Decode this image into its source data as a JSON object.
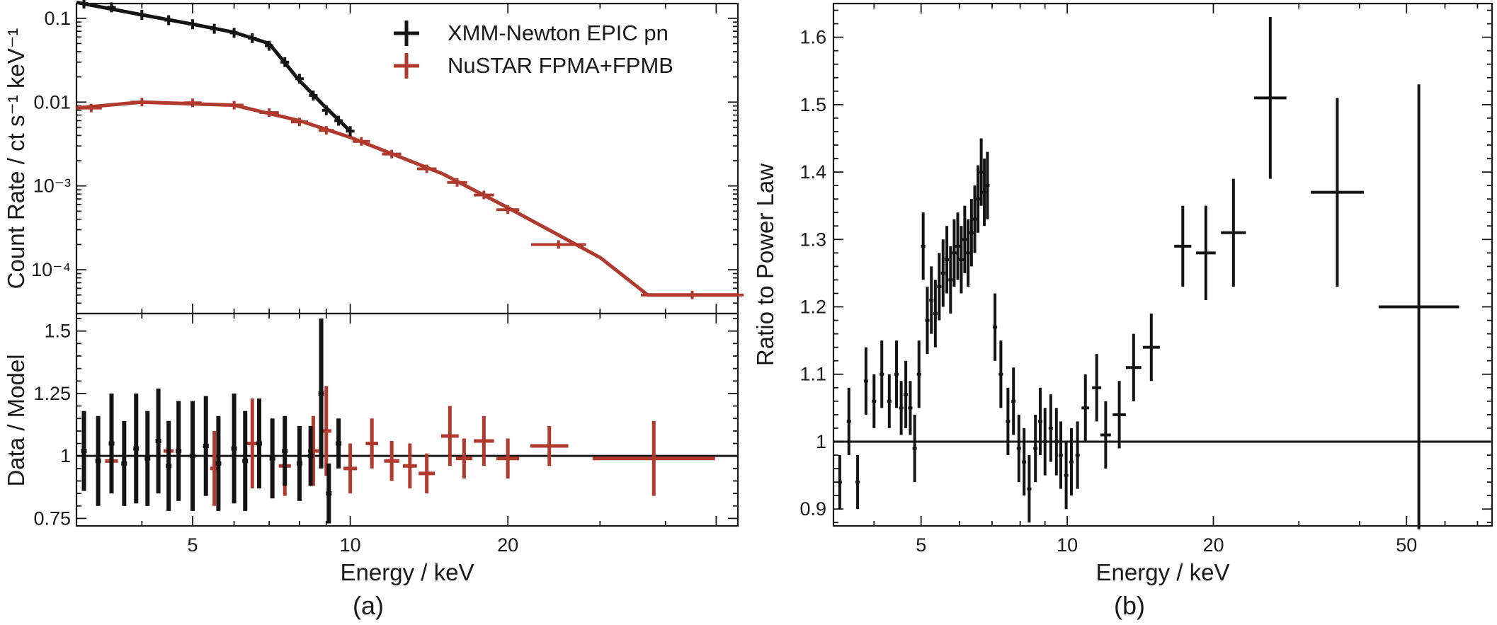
{
  "colors": {
    "xmm": "#141414",
    "nustar": "#b03a2e",
    "axis": "#1a1a1a"
  },
  "chart_data": [
    {
      "type": "scatter",
      "panel": "a-top",
      "xscale": "log",
      "yscale": "log",
      "xlim": [
        3,
        55
      ],
      "ylim": [
        3e-05,
        0.15
      ],
      "ylabel": "Count Rate / ct s⁻¹ keV⁻¹",
      "ytick_labels": [
        {
          "value": 0.1,
          "label": "0.1"
        },
        {
          "value": 0.01,
          "label": "0.01"
        },
        {
          "value": 0.001,
          "label": "10⁻³"
        },
        {
          "value": 0.0001,
          "label": "10⁻⁴"
        }
      ],
      "legend": {
        "position": "top-right",
        "entries": [
          "XMM-Newton EPIC pn",
          "NuSTAR FPMA+FPMB"
        ]
      },
      "series": [
        {
          "name": "XMM-Newton EPIC pn",
          "model": [
            [
              3.0,
              0.155
            ],
            [
              4.0,
              0.11
            ],
            [
              5.0,
              0.085
            ],
            [
              6.0,
              0.068
            ],
            [
              7.0,
              0.05
            ],
            [
              8.0,
              0.018
            ],
            [
              9.0,
              0.0085
            ],
            [
              10.0,
              0.0045
            ]
          ],
          "points": [
            [
              3.1,
              0.15
            ],
            [
              3.5,
              0.135
            ],
            [
              4.0,
              0.11
            ],
            [
              4.5,
              0.095
            ],
            [
              5.0,
              0.085
            ],
            [
              5.5,
              0.075
            ],
            [
              6.0,
              0.067
            ],
            [
              6.5,
              0.058
            ],
            [
              7.0,
              0.047
            ],
            [
              7.5,
              0.03
            ],
            [
              8.0,
              0.019
            ],
            [
              8.5,
              0.012
            ],
            [
              9.0,
              0.008
            ],
            [
              9.5,
              0.006
            ],
            [
              10.0,
              0.0045
            ]
          ]
        },
        {
          "name": "NuSTAR FPMA+FPMB",
          "model": [
            [
              3.0,
              0.0085
            ],
            [
              4.0,
              0.01
            ],
            [
              6.0,
              0.0092
            ],
            [
              8.0,
              0.006
            ],
            [
              10.0,
              0.0038
            ],
            [
              15.0,
              0.0014
            ],
            [
              20.0,
              0.00055
            ],
            [
              30.0,
              0.00014
            ],
            [
              37.0,
              5e-05
            ],
            [
              55.0,
              5e-05
            ]
          ],
          "points": [
            {
              "x": 3.2,
              "y": 0.0085,
              "xerr": 0.15
            },
            {
              "x": 4.0,
              "y": 0.01,
              "xerr": 0.2
            },
            {
              "x": 5.0,
              "y": 0.0098,
              "xerr": 0.2
            },
            {
              "x": 6.0,
              "y": 0.0092,
              "xerr": 0.25
            },
            {
              "x": 7.0,
              "y": 0.0075,
              "xerr": 0.3
            },
            {
              "x": 8.0,
              "y": 0.0058,
              "xerr": 0.3
            },
            {
              "x": 9.0,
              "y": 0.0046,
              "xerr": 0.3
            },
            {
              "x": 10.5,
              "y": 0.0034,
              "xerr": 0.4
            },
            {
              "x": 12.0,
              "y": 0.0024,
              "xerr": 0.5
            },
            {
              "x": 14.0,
              "y": 0.0016,
              "xerr": 0.6
            },
            {
              "x": 16.0,
              "y": 0.0011,
              "xerr": 0.7
            },
            {
              "x": 18.0,
              "y": 0.00078,
              "xerr": 0.8
            },
            {
              "x": 20.0,
              "y": 0.00052,
              "xerr": 1.0
            },
            {
              "x": 25.0,
              "y": 0.0002,
              "xerr": 3.0
            },
            {
              "x": 45.0,
              "y": 5e-05,
              "xerr": 10.0
            }
          ]
        }
      ]
    },
    {
      "type": "scatter",
      "panel": "a-bottom",
      "xscale": "log",
      "xlim": [
        3,
        55
      ],
      "ylim": [
        0.72,
        1.57
      ],
      "xlabel": "Energy / keV",
      "ylabel": "Data / Model",
      "xtick_labels": [
        {
          "value": 5,
          "label": "5"
        },
        {
          "value": 10,
          "label": "10"
        },
        {
          "value": 20,
          "label": "20"
        }
      ],
      "ytick_labels": [
        {
          "value": 0.75,
          "label": "0.75"
        },
        {
          "value": 1,
          "label": "1"
        },
        {
          "value": 1.25,
          "label": "1.25"
        },
        {
          "value": 1.5,
          "label": "1.5"
        }
      ],
      "reference_line": 1,
      "series": [
        {
          "name": "XMM-Newton EPIC pn",
          "points": [
            {
              "x": 3.1,
              "y": 1.02,
              "err": 0.16
            },
            {
              "x": 3.3,
              "y": 0.98,
              "err": 0.18
            },
            {
              "x": 3.5,
              "y": 1.05,
              "err": 0.2
            },
            {
              "x": 3.7,
              "y": 0.97,
              "err": 0.17
            },
            {
              "x": 3.9,
              "y": 1.03,
              "err": 0.22
            },
            {
              "x": 4.1,
              "y": 0.99,
              "err": 0.19
            },
            {
              "x": 4.3,
              "y": 1.06,
              "err": 0.21
            },
            {
              "x": 4.5,
              "y": 0.96,
              "err": 0.18
            },
            {
              "x": 4.7,
              "y": 1.02,
              "err": 0.2
            },
            {
              "x": 5.0,
              "y": 1.0,
              "err": 0.22
            },
            {
              "x": 5.3,
              "y": 1.04,
              "err": 0.2
            },
            {
              "x": 5.6,
              "y": 0.97,
              "err": 0.19
            },
            {
              "x": 6.0,
              "y": 1.03,
              "err": 0.22
            },
            {
              "x": 6.3,
              "y": 0.98,
              "err": 0.2
            },
            {
              "x": 6.7,
              "y": 1.05,
              "err": 0.18
            },
            {
              "x": 7.1,
              "y": 0.99,
              "err": 0.16
            },
            {
              "x": 7.5,
              "y": 1.02,
              "err": 0.14
            },
            {
              "x": 8.0,
              "y": 0.97,
              "err": 0.15
            },
            {
              "x": 8.4,
              "y": 1.0,
              "err": 0.12
            },
            {
              "x": 8.8,
              "y": 1.25,
              "err": 0.3
            },
            {
              "x": 9.1,
              "y": 0.85,
              "err": 0.12
            },
            {
              "x": 9.5,
              "y": 1.05,
              "err": 0.1
            }
          ]
        },
        {
          "name": "NuSTAR FPMA+FPMB",
          "points": [
            {
              "x": 3.5,
              "y": 0.98,
              "err": 0.1,
              "xerr": 0.1
            },
            {
              "x": 4.5,
              "y": 1.02,
              "err": 0.12,
              "xerr": 0.1
            },
            {
              "x": 5.5,
              "y": 0.95,
              "err": 0.15,
              "xerr": 0.1
            },
            {
              "x": 6.5,
              "y": 1.05,
              "err": 0.18,
              "xerr": 0.15
            },
            {
              "x": 7.5,
              "y": 0.96,
              "err": 0.12,
              "xerr": 0.2
            },
            {
              "x": 8.5,
              "y": 1.02,
              "err": 0.14,
              "xerr": 0.2
            },
            {
              "x": 9.0,
              "y": 1.1,
              "err": 0.18,
              "xerr": 0.2
            },
            {
              "x": 10.0,
              "y": 0.95,
              "err": 0.1,
              "xerr": 0.3
            },
            {
              "x": 11.0,
              "y": 1.05,
              "err": 0.1,
              "xerr": 0.3
            },
            {
              "x": 12.0,
              "y": 0.98,
              "err": 0.08,
              "xerr": 0.4
            },
            {
              "x": 13.0,
              "y": 0.96,
              "err": 0.09,
              "xerr": 0.4
            },
            {
              "x": 14.0,
              "y": 0.93,
              "err": 0.08,
              "xerr": 0.5
            },
            {
              "x": 15.5,
              "y": 1.08,
              "err": 0.12,
              "xerr": 0.6
            },
            {
              "x": 16.5,
              "y": 0.99,
              "err": 0.08,
              "xerr": 0.6
            },
            {
              "x": 18.0,
              "y": 1.06,
              "err": 0.1,
              "xerr": 0.8
            },
            {
              "x": 20.0,
              "y": 0.99,
              "err": 0.08,
              "xerr": 1.0
            },
            {
              "x": 24.0,
              "y": 1.04,
              "err": 0.08,
              "xerr": 2.0
            },
            {
              "x": 38.0,
              "y": 0.99,
              "err": 0.15,
              "xerr": 10.0
            }
          ]
        }
      ]
    },
    {
      "type": "scatter",
      "panel": "b",
      "xscale": "log",
      "xlim": [
        3.3,
        75
      ],
      "ylim": [
        0.875,
        1.65
      ],
      "xlabel": "Energy / keV",
      "ylabel": "Ratio to Power Law",
      "xtick_labels": [
        {
          "value": 5,
          "label": "5"
        },
        {
          "value": 10,
          "label": "10"
        },
        {
          "value": 20,
          "label": "20"
        },
        {
          "value": 50,
          "label": "50"
        }
      ],
      "ytick_labels": [
        {
          "value": 0.9,
          "label": "0.9"
        },
        {
          "value": 1.0,
          "label": "1"
        },
        {
          "value": 1.1,
          "label": "1.1"
        },
        {
          "value": 1.2,
          "label": "1.2"
        },
        {
          "value": 1.3,
          "label": "1.3"
        },
        {
          "value": 1.4,
          "label": "1.4"
        },
        {
          "value": 1.5,
          "label": "1.5"
        },
        {
          "value": 1.6,
          "label": "1.6"
        }
      ],
      "reference_line": 1,
      "series": [
        {
          "name": "ratio",
          "points": [
            {
              "x": 3.4,
              "y": 0.94,
              "err": 0.04
            },
            {
              "x": 3.55,
              "y": 1.03,
              "err": 0.05
            },
            {
              "x": 3.7,
              "y": 0.94,
              "err": 0.04
            },
            {
              "x": 3.85,
              "y": 1.09,
              "err": 0.05
            },
            {
              "x": 4.0,
              "y": 1.06,
              "err": 0.04
            },
            {
              "x": 4.15,
              "y": 1.1,
              "err": 0.05
            },
            {
              "x": 4.3,
              "y": 1.06,
              "err": 0.04
            },
            {
              "x": 4.45,
              "y": 1.1,
              "err": 0.05
            },
            {
              "x": 4.55,
              "y": 1.05,
              "err": 0.04
            },
            {
              "x": 4.65,
              "y": 1.07,
              "err": 0.05
            },
            {
              "x": 4.75,
              "y": 1.05,
              "err": 0.04
            },
            {
              "x": 4.85,
              "y": 0.99,
              "err": 0.05
            },
            {
              "x": 4.95,
              "y": 1.1,
              "err": 0.05
            },
            {
              "x": 5.05,
              "y": 1.29,
              "err": 0.05
            },
            {
              "x": 5.15,
              "y": 1.18,
              "err": 0.05
            },
            {
              "x": 5.25,
              "y": 1.21,
              "err": 0.05
            },
            {
              "x": 5.35,
              "y": 1.19,
              "err": 0.05
            },
            {
              "x": 5.45,
              "y": 1.23,
              "err": 0.05
            },
            {
              "x": 5.55,
              "y": 1.25,
              "err": 0.05
            },
            {
              "x": 5.65,
              "y": 1.27,
              "err": 0.05
            },
            {
              "x": 5.75,
              "y": 1.24,
              "err": 0.05
            },
            {
              "x": 5.85,
              "y": 1.28,
              "err": 0.05
            },
            {
              "x": 5.95,
              "y": 1.29,
              "err": 0.05
            },
            {
              "x": 6.05,
              "y": 1.27,
              "err": 0.05
            },
            {
              "x": 6.15,
              "y": 1.3,
              "err": 0.05
            },
            {
              "x": 6.25,
              "y": 1.28,
              "err": 0.05
            },
            {
              "x": 6.35,
              "y": 1.31,
              "err": 0.05
            },
            {
              "x": 6.45,
              "y": 1.33,
              "err": 0.05
            },
            {
              "x": 6.55,
              "y": 1.36,
              "err": 0.05
            },
            {
              "x": 6.65,
              "y": 1.4,
              "err": 0.05
            },
            {
              "x": 6.75,
              "y": 1.37,
              "err": 0.05
            },
            {
              "x": 6.85,
              "y": 1.38,
              "err": 0.05
            },
            {
              "x": 7.1,
              "y": 1.17,
              "err": 0.05
            },
            {
              "x": 7.3,
              "y": 1.1,
              "err": 0.05
            },
            {
              "x": 7.55,
              "y": 1.03,
              "err": 0.05
            },
            {
              "x": 7.75,
              "y": 1.06,
              "err": 0.05
            },
            {
              "x": 7.95,
              "y": 0.99,
              "err": 0.05
            },
            {
              "x": 8.15,
              "y": 0.97,
              "err": 0.05
            },
            {
              "x": 8.35,
              "y": 0.93,
              "err": 0.05
            },
            {
              "x": 8.6,
              "y": 0.99,
              "err": 0.05
            },
            {
              "x": 8.8,
              "y": 1.03,
              "err": 0.05
            },
            {
              "x": 9.0,
              "y": 1.0,
              "err": 0.05
            },
            {
              "x": 9.25,
              "y": 1.02,
              "err": 0.05
            },
            {
              "x": 9.5,
              "y": 1.0,
              "err": 0.05
            },
            {
              "x": 9.7,
              "y": 0.98,
              "err": 0.05
            },
            {
              "x": 9.95,
              "y": 0.95,
              "err": 0.05
            },
            {
              "x": 10.2,
              "y": 0.97,
              "err": 0.05
            },
            {
              "x": 10.5,
              "y": 0.98,
              "err": 0.05
            },
            {
              "x": 10.9,
              "y": 1.05,
              "err": 0.05,
              "xerr": 0.2
            },
            {
              "x": 11.5,
              "y": 1.08,
              "err": 0.05,
              "xerr": 0.25
            },
            {
              "x": 12.0,
              "y": 1.01,
              "err": 0.05,
              "xerr": 0.3
            },
            {
              "x": 12.8,
              "y": 1.04,
              "err": 0.05,
              "xerr": 0.4
            },
            {
              "x": 13.7,
              "y": 1.11,
              "err": 0.05,
              "xerr": 0.5
            },
            {
              "x": 14.9,
              "y": 1.14,
              "err": 0.05,
              "xerr": 0.6
            },
            {
              "x": 17.3,
              "y": 1.29,
              "err": 0.06,
              "xerr": 0.7
            },
            {
              "x": 19.3,
              "y": 1.28,
              "err": 0.07,
              "xerr": 0.9
            },
            {
              "x": 22.0,
              "y": 1.31,
              "err": 0.08,
              "xerr": 1.3
            },
            {
              "x": 26.2,
              "y": 1.51,
              "err": 0.12,
              "xerr": 2.0
            },
            {
              "x": 36.0,
              "y": 1.37,
              "err": 0.14,
              "xerr": 4.5
            },
            {
              "x": 53.0,
              "y": 1.2,
              "err": 0.33,
              "xerr": 10.0
            }
          ]
        }
      ]
    }
  ],
  "captions": {
    "a": "(a)",
    "b": "(b)"
  }
}
